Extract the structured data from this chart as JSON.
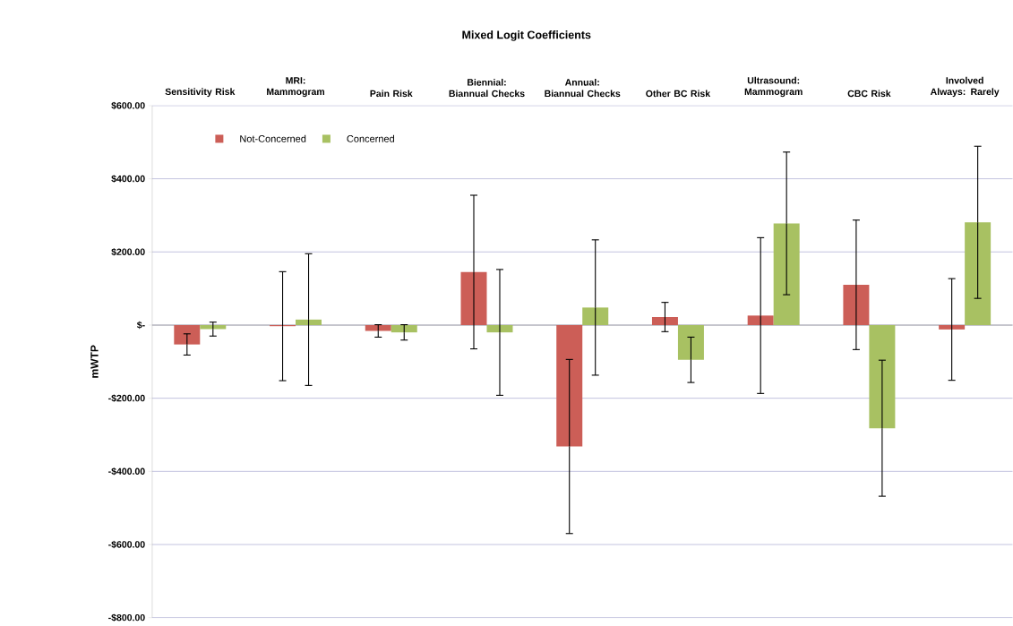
{
  "chart_data": {
    "type": "bar",
    "title": "Mixed Logit Coefficients",
    "ylabel": "mWTP",
    "categories": [
      "Sensitivity Risk",
      "MRI: Mammogram",
      "Pain Risk",
      "Biennial: Biannual Checks",
      "Annual: Biannual Checks",
      "Other BC Risk",
      "Ultrasound: Mammogram",
      "CBC Risk",
      "Involved Always: Rarely"
    ],
    "series": [
      {
        "name": "Not-Concerned",
        "color": "#cc5e57",
        "values": [
          -53,
          -3,
          -16,
          145,
          -332,
          22,
          26,
          110,
          -12
        ],
        "errors": [
          29,
          149,
          17,
          210,
          238,
          40,
          213,
          177,
          139
        ]
      },
      {
        "name": "Concerned",
        "color": "#a8c162",
        "values": [
          -11,
          15,
          -20,
          -20,
          48,
          -95,
          278,
          -282,
          281
        ],
        "errors": [
          19,
          180,
          21,
          172,
          185,
          62,
          195,
          186,
          208
        ]
      }
    ],
    "ylim": [
      -800,
      600
    ],
    "yticks": [
      {
        "value": -800,
        "label": "-$800.00"
      },
      {
        "value": -600,
        "label": "-$600.00"
      },
      {
        "value": -400,
        "label": "-$400.00"
      },
      {
        "value": -200,
        "label": "-$200.00"
      },
      {
        "value": 0,
        "label": "$-"
      },
      {
        "value": 200,
        "label": "$200.00"
      },
      {
        "value": 400,
        "label": "$400.00"
      },
      {
        "value": 600,
        "label": "$600.00"
      }
    ],
    "grid": "y",
    "legend": "top left"
  }
}
